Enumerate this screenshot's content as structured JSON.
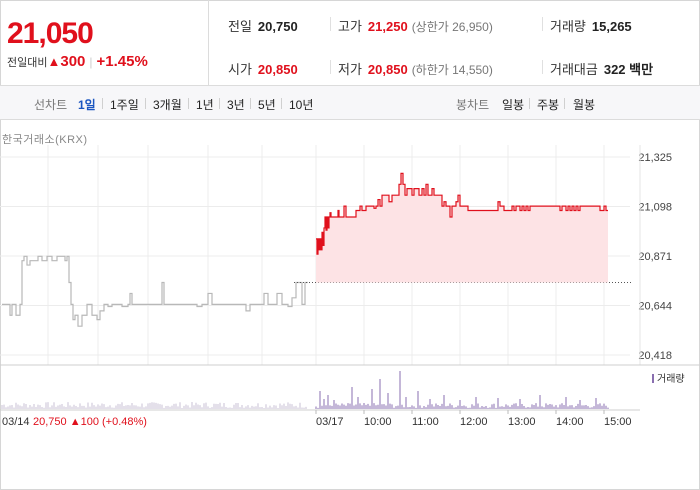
{
  "header": {
    "price": "21,050",
    "change_label": "전일대비",
    "change_arrow": "▲",
    "change_amount": "300",
    "change_pct": "+1.45%",
    "stats": [
      {
        "key": "전일",
        "value": "20,750",
        "color": "normal"
      },
      {
        "key": "고가",
        "value": "21,250",
        "color": "up",
        "sub": "(상한가 26,950)"
      },
      {
        "key": "거래량",
        "value": "15,265",
        "color": "normal"
      },
      {
        "key": "시가",
        "value": "20,850",
        "color": "up"
      },
      {
        "key": "저가",
        "value": "20,850",
        "color": "up",
        "sub": "(하한가 14,550)"
      },
      {
        "key": "거래대금",
        "value": "322 백만",
        "color": "normal"
      }
    ]
  },
  "toolbar": {
    "line_label": "선차트",
    "line_periods": [
      "1일",
      "1주일",
      "3개월",
      "1년",
      "3년",
      "5년",
      "10년"
    ],
    "active_period": "1일",
    "candle_label": "봉차트",
    "candle_periods": [
      "일봉",
      "주봉",
      "월봉"
    ]
  },
  "exchange_label": "한국거래소(KRX)",
  "colors": {
    "up": "#e0101c",
    "fill": "#fde3e5",
    "prev_line": "#b8b8b8",
    "volume": "#8a6fb0",
    "accent": "#1a55c0"
  },
  "chart_data": {
    "type": "line",
    "y_ticks": [
      "21,325",
      "21,098",
      "20,871",
      "20,644",
      "20,418"
    ],
    "ylim": [
      20418,
      21325
    ],
    "x_ticks": [
      "03/17",
      "10:00",
      "11:00",
      "12:00",
      "13:00",
      "14:00",
      "15:00"
    ],
    "prev_day_label": "03/14",
    "prev_day_close": "20,750",
    "prev_day_arrow": "▲",
    "prev_day_change": "100",
    "prev_day_pct": "(+0.48%)",
    "volume_legend": "거래량",
    "reference_level": 20750,
    "prev_series": [
      [
        0,
        20650
      ],
      [
        6,
        20650
      ],
      [
        8,
        20600
      ],
      [
        10,
        20650
      ],
      [
        14,
        20600
      ],
      [
        18,
        20650
      ],
      [
        20,
        20850
      ],
      [
        22,
        20870
      ],
      [
        25,
        20830
      ],
      [
        28,
        20850
      ],
      [
        32,
        20850
      ],
      [
        36,
        20870
      ],
      [
        40,
        20850
      ],
      [
        45,
        20870
      ],
      [
        50,
        20850
      ],
      [
        55,
        20870
      ],
      [
        60,
        20870
      ],
      [
        63,
        20850
      ],
      [
        65,
        20870
      ],
      [
        67,
        20750
      ],
      [
        69,
        20650
      ],
      [
        71,
        20580
      ],
      [
        73,
        20600
      ],
      [
        76,
        20550
      ],
      [
        80,
        20600
      ],
      [
        85,
        20650
      ],
      [
        90,
        20600
      ],
      [
        95,
        20580
      ],
      [
        98,
        20620
      ],
      [
        102,
        20650
      ],
      [
        106,
        20640
      ],
      [
        110,
        20650
      ],
      [
        115,
        20650
      ],
      [
        120,
        20640
      ],
      [
        126,
        20650
      ],
      [
        128,
        20700
      ],
      [
        130,
        20650
      ],
      [
        140,
        20650
      ],
      [
        150,
        20650
      ],
      [
        158,
        20650
      ],
      [
        160,
        20750
      ],
      [
        162,
        20650
      ],
      [
        170,
        20650
      ],
      [
        180,
        20650
      ],
      [
        190,
        20650
      ],
      [
        195,
        20640
      ],
      [
        200,
        20650
      ],
      [
        206,
        20700
      ],
      [
        210,
        20650
      ],
      [
        220,
        20650
      ],
      [
        230,
        20650
      ],
      [
        240,
        20650
      ],
      [
        244,
        20620
      ],
      [
        248,
        20650
      ],
      [
        255,
        20650
      ],
      [
        262,
        20700
      ],
      [
        266,
        20650
      ],
      [
        270,
        20650
      ],
      [
        275,
        20700
      ],
      [
        280,
        20650
      ],
      [
        286,
        20640
      ],
      [
        290,
        20680
      ],
      [
        294,
        20750
      ],
      [
        298,
        20750
      ],
      [
        300,
        20650
      ],
      [
        303,
        20750
      ],
      [
        306,
        20750
      ]
    ],
    "today_series": [
      [
        0,
        20950
      ],
      [
        1,
        20880
      ],
      [
        2,
        20950
      ],
      [
        3,
        20900
      ],
      [
        4,
        20950
      ],
      [
        5,
        20900
      ],
      [
        6,
        20980
      ],
      [
        7,
        20920
      ],
      [
        8,
        21000
      ],
      [
        9,
        21050
      ],
      [
        10,
        20990
      ],
      [
        11,
        21050
      ],
      [
        12,
        21000
      ],
      [
        13,
        21050
      ],
      [
        14,
        21070
      ],
      [
        15,
        21050
      ],
      [
        18,
        21050
      ],
      [
        20,
        21050
      ],
      [
        22,
        21080
      ],
      [
        23,
        21050
      ],
      [
        26,
        21050
      ],
      [
        28,
        21100
      ],
      [
        30,
        21050
      ],
      [
        35,
        21050
      ],
      [
        40,
        21080
      ],
      [
        44,
        21100
      ],
      [
        46,
        21080
      ],
      [
        50,
        21100
      ],
      [
        54,
        21100
      ],
      [
        58,
        21090
      ],
      [
        60,
        21100
      ],
      [
        62,
        21130
      ],
      [
        64,
        21100
      ],
      [
        66,
        21150
      ],
      [
        70,
        21150
      ],
      [
        73,
        21120
      ],
      [
        76,
        21150
      ],
      [
        78,
        21150
      ],
      [
        80,
        21150
      ],
      [
        83,
        21200
      ],
      [
        85,
        21250
      ],
      [
        87,
        21200
      ],
      [
        89,
        21150
      ],
      [
        91,
        21180
      ],
      [
        94,
        21180
      ],
      [
        96,
        21150
      ],
      [
        98,
        21180
      ],
      [
        100,
        21180
      ],
      [
        103,
        21150
      ],
      [
        106,
        21180
      ],
      [
        108,
        21150
      ],
      [
        110,
        21200
      ],
      [
        112,
        21150
      ],
      [
        114,
        21150
      ],
      [
        116,
        21180
      ],
      [
        118,
        21150
      ],
      [
        120,
        21150
      ],
      [
        122,
        21150
      ],
      [
        124,
        21150
      ],
      [
        126,
        21100
      ],
      [
        128,
        21120
      ],
      [
        130,
        21100
      ],
      [
        132,
        21100
      ],
      [
        134,
        21050
      ],
      [
        136,
        21100
      ],
      [
        138,
        21100
      ],
      [
        140,
        21120
      ],
      [
        142,
        21150
      ],
      [
        144,
        21100
      ],
      [
        146,
        21100
      ],
      [
        150,
        21100
      ],
      [
        152,
        21080
      ],
      [
        154,
        21080
      ],
      [
        156,
        21080
      ],
      [
        160,
        21080
      ],
      [
        165,
        21080
      ],
      [
        170,
        21080
      ],
      [
        175,
        21080
      ],
      [
        178,
        21080
      ],
      [
        180,
        21080
      ],
      [
        182,
        21120
      ],
      [
        184,
        21100
      ],
      [
        186,
        21100
      ],
      [
        188,
        21080
      ],
      [
        190,
        21080
      ],
      [
        194,
        21080
      ],
      [
        196,
        21100
      ],
      [
        198,
        21080
      ],
      [
        200,
        21100
      ],
      [
        202,
        21100
      ],
      [
        204,
        21080
      ],
      [
        206,
        21100
      ],
      [
        208,
        21080
      ],
      [
        210,
        21100
      ],
      [
        212,
        21080
      ],
      [
        214,
        21100
      ],
      [
        216,
        21100
      ],
      [
        218,
        21100
      ],
      [
        220,
        21100
      ],
      [
        222,
        21100
      ],
      [
        224,
        21100
      ],
      [
        226,
        21100
      ],
      [
        228,
        21100
      ],
      [
        230,
        21100
      ],
      [
        232,
        21100
      ],
      [
        236,
        21100
      ],
      [
        238,
        21100
      ],
      [
        242,
        21100
      ],
      [
        244,
        21080
      ],
      [
        246,
        21100
      ],
      [
        248,
        21100
      ],
      [
        250,
        21080
      ],
      [
        252,
        21100
      ],
      [
        254,
        21080
      ],
      [
        256,
        21100
      ],
      [
        258,
        21080
      ],
      [
        260,
        21100
      ],
      [
        262,
        21080
      ],
      [
        264,
        21100
      ],
      [
        266,
        21100
      ],
      [
        268,
        21100
      ],
      [
        270,
        21100
      ],
      [
        272,
        21100
      ],
      [
        274,
        21100
      ],
      [
        276,
        21100
      ],
      [
        278,
        21100
      ],
      [
        280,
        21100
      ],
      [
        282,
        21100
      ],
      [
        284,
        21080
      ],
      [
        286,
        21080
      ],
      [
        288,
        21100
      ],
      [
        290,
        21080
      ],
      [
        292,
        21080
      ]
    ]
  }
}
